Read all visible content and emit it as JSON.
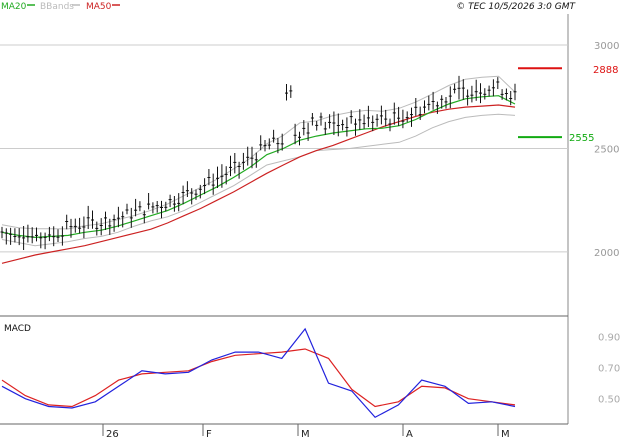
{
  "legend": {
    "items": [
      {
        "label": "MA20",
        "color": "#22aa22"
      },
      {
        "label": "BBands",
        "color": "#bbbbbb"
      },
      {
        "label": "MA50",
        "color": "#cc2222"
      }
    ],
    "copyright": "© TEC 10/5/2026 3:0 GMT"
  },
  "price_axis": {
    "ticks": [
      "3000",
      "2500",
      "2000"
    ]
  },
  "markers": {
    "resistance": {
      "label": "2888",
      "color": "#dd1111"
    },
    "support": {
      "label": "2555",
      "color": "#11aa11"
    }
  },
  "macd_panel": {
    "title": "MACD",
    "ticks": [
      "0.90",
      "0.70",
      "0.50"
    ]
  },
  "x_axis": {
    "labels": [
      "26",
      "F",
      "M",
      "A",
      "M"
    ]
  },
  "colors": {
    "candle": "#111111",
    "ma20": "#22aa22",
    "bbands": "#bbbbbb",
    "ma50": "#cc2222",
    "macd": "#2222dd",
    "signal": "#dd2222"
  },
  "chart_data": [
    {
      "type": "line",
      "title": "",
      "xlabel": "",
      "ylabel": "",
      "ylim": [
        1700,
        3150
      ],
      "grid": true,
      "legend": "top-left",
      "series": [
        {
          "name": "MA20",
          "values": [
            2095,
            2080,
            2070,
            2075,
            2080,
            2095,
            2105,
            2125,
            2150,
            2175,
            2200,
            2235,
            2275,
            2315,
            2360,
            2410,
            2470,
            2500,
            2540,
            2560,
            2575,
            2585,
            2595,
            2598,
            2610,
            2640,
            2680,
            2715,
            2740,
            2750,
            2755,
            2715
          ]
        },
        {
          "name": "BBands",
          "values": [
            2060,
            2045,
            2030,
            2040,
            2050,
            2065,
            2075,
            2095,
            2125,
            2150,
            2170,
            2200,
            2240,
            2280,
            2320,
            2370,
            2420,
            2440,
            2460,
            2490,
            2495,
            2500,
            2510,
            2520,
            2530,
            2560,
            2600,
            2630,
            2650,
            2660,
            2665,
            2660
          ]
        },
        {
          "name": "MA50",
          "values": [
            1945,
            1965,
            1985,
            2000,
            2015,
            2030,
            2050,
            2070,
            2090,
            2110,
            2140,
            2175,
            2210,
            2250,
            2290,
            2335,
            2380,
            2420,
            2460,
            2490,
            2515,
            2545,
            2575,
            2605,
            2630,
            2655,
            2675,
            2690,
            2700,
            2705,
            2710,
            2700
          ]
        }
      ]
    },
    {
      "type": "line",
      "title": "MACD",
      "xlabel": "",
      "ylabel": "",
      "ylim": [
        0.35,
        1.02
      ],
      "series": [
        {
          "name": "MACD",
          "values": [
            0.58,
            0.5,
            0.45,
            0.44,
            0.48,
            0.58,
            0.68,
            0.66,
            0.67,
            0.75,
            0.8,
            0.8,
            0.76,
            0.95,
            0.6,
            0.55,
            0.38,
            0.46,
            0.62,
            0.58,
            0.47,
            0.48,
            0.45
          ]
        },
        {
          "name": "Signal",
          "values": [
            0.62,
            0.52,
            0.46,
            0.45,
            0.52,
            0.62,
            0.66,
            0.67,
            0.68,
            0.74,
            0.78,
            0.79,
            0.8,
            0.82,
            0.76,
            0.56,
            0.45,
            0.48,
            0.58,
            0.57,
            0.5,
            0.48,
            0.46
          ]
        }
      ]
    }
  ]
}
